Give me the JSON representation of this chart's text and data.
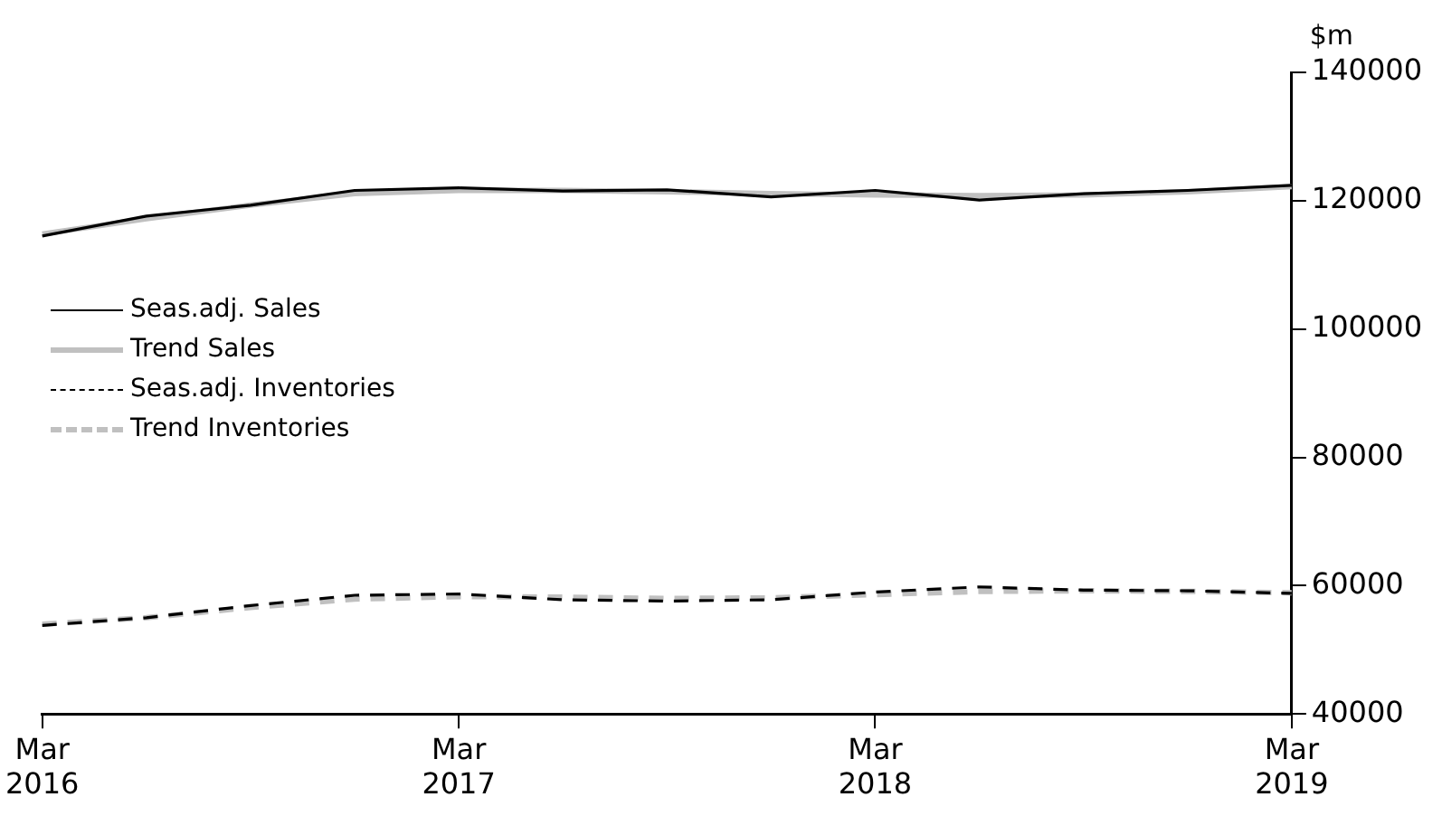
{
  "chart_data": {
    "type": "line",
    "ylabel": "$m",
    "categories": [
      "Mar\n2016",
      null,
      null,
      null,
      "Mar\n2017",
      null,
      null,
      null,
      "Mar\n2018",
      null,
      null,
      null,
      "Mar\n2019"
    ],
    "series": [
      {
        "name": "Seas.adj. Sales",
        "color": "#000000",
        "line_style": "solid",
        "values": [
          114500,
          117600,
          119300,
          121600,
          122000,
          121500,
          121700,
          120600,
          121600,
          120100,
          121100,
          121600,
          122400
        ]
      },
      {
        "name": "Trend Sales",
        "color": "#c0c0c0",
        "line_style": "solid",
        "values": [
          114800,
          117200,
          119300,
          121100,
          121600,
          121600,
          121400,
          121100,
          120900,
          120800,
          120900,
          121400,
          122200
        ]
      },
      {
        "name": "Seas.adj. Inventories",
        "color": "#000000",
        "line_style": "dashed",
        "values": [
          53800,
          55000,
          56900,
          58500,
          58700,
          57800,
          57600,
          57800,
          59000,
          59800,
          59300,
          59200,
          58800
        ]
      },
      {
        "name": "Trend Inventories",
        "color": "#c0c0c0",
        "line_style": "dashed",
        "values": [
          54000,
          55000,
          56600,
          57900,
          58300,
          58200,
          58000,
          58100,
          58600,
          59100,
          59200,
          59100,
          58900
        ]
      }
    ],
    "ylim": [
      40000,
      140000
    ],
    "yticks": [
      40000,
      60000,
      80000,
      100000,
      120000,
      140000
    ],
    "grid": false,
    "legend": "left",
    "marker": "none"
  }
}
